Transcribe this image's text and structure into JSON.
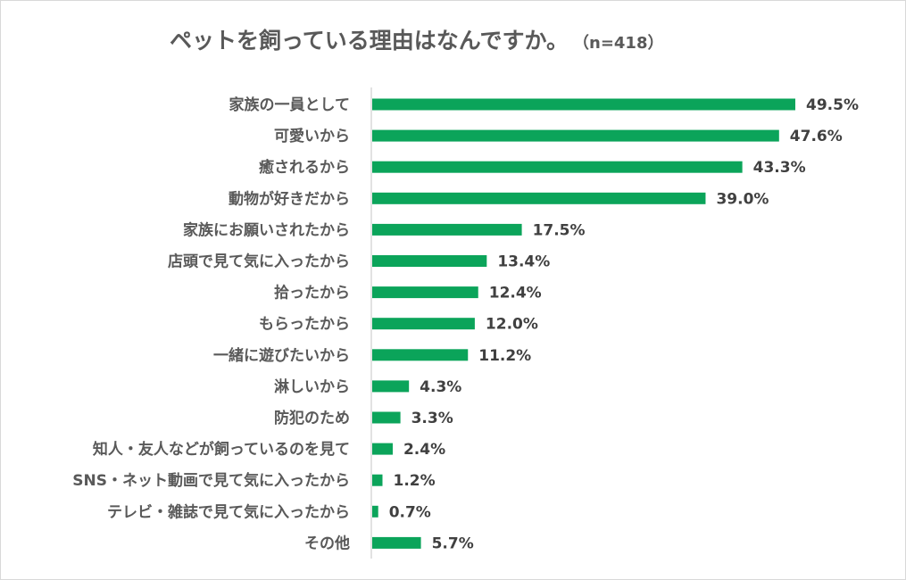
{
  "chart_data": {
    "type": "bar",
    "orientation": "horizontal",
    "title": "ペットを飼っている理由はなんですか。",
    "subtitle": "（n=418）",
    "categories": [
      "家族の一員として",
      "可愛いから",
      "癒されるから",
      "動物が好きだから",
      "家族にお願いされたから",
      "店頭で見て気に入ったから",
      "拾ったから",
      "もらったから",
      "一緒に遊びたいから",
      "淋しいから",
      "防犯のため",
      "知人・友人などが飼っているのを見て",
      "SNS・ネット動画で見て気に入ったから",
      "テレビ・雑誌で見て気に入ったから",
      "その他"
    ],
    "values": [
      49.5,
      47.6,
      43.3,
      39.0,
      17.5,
      13.4,
      12.4,
      12.0,
      11.2,
      4.3,
      3.3,
      2.4,
      1.2,
      0.7,
      5.7
    ],
    "value_labels": [
      "49.5%",
      "47.6%",
      "43.3%",
      "39.0%",
      "17.5%",
      "13.4%",
      "12.4%",
      "12.0%",
      "11.2%",
      "4.3%",
      "3.3%",
      "2.4%",
      "1.2%",
      "0.7%",
      "5.7%"
    ],
    "unit": "%",
    "grid": false,
    "legend": "none",
    "bar_color": "#0ba45a"
  }
}
